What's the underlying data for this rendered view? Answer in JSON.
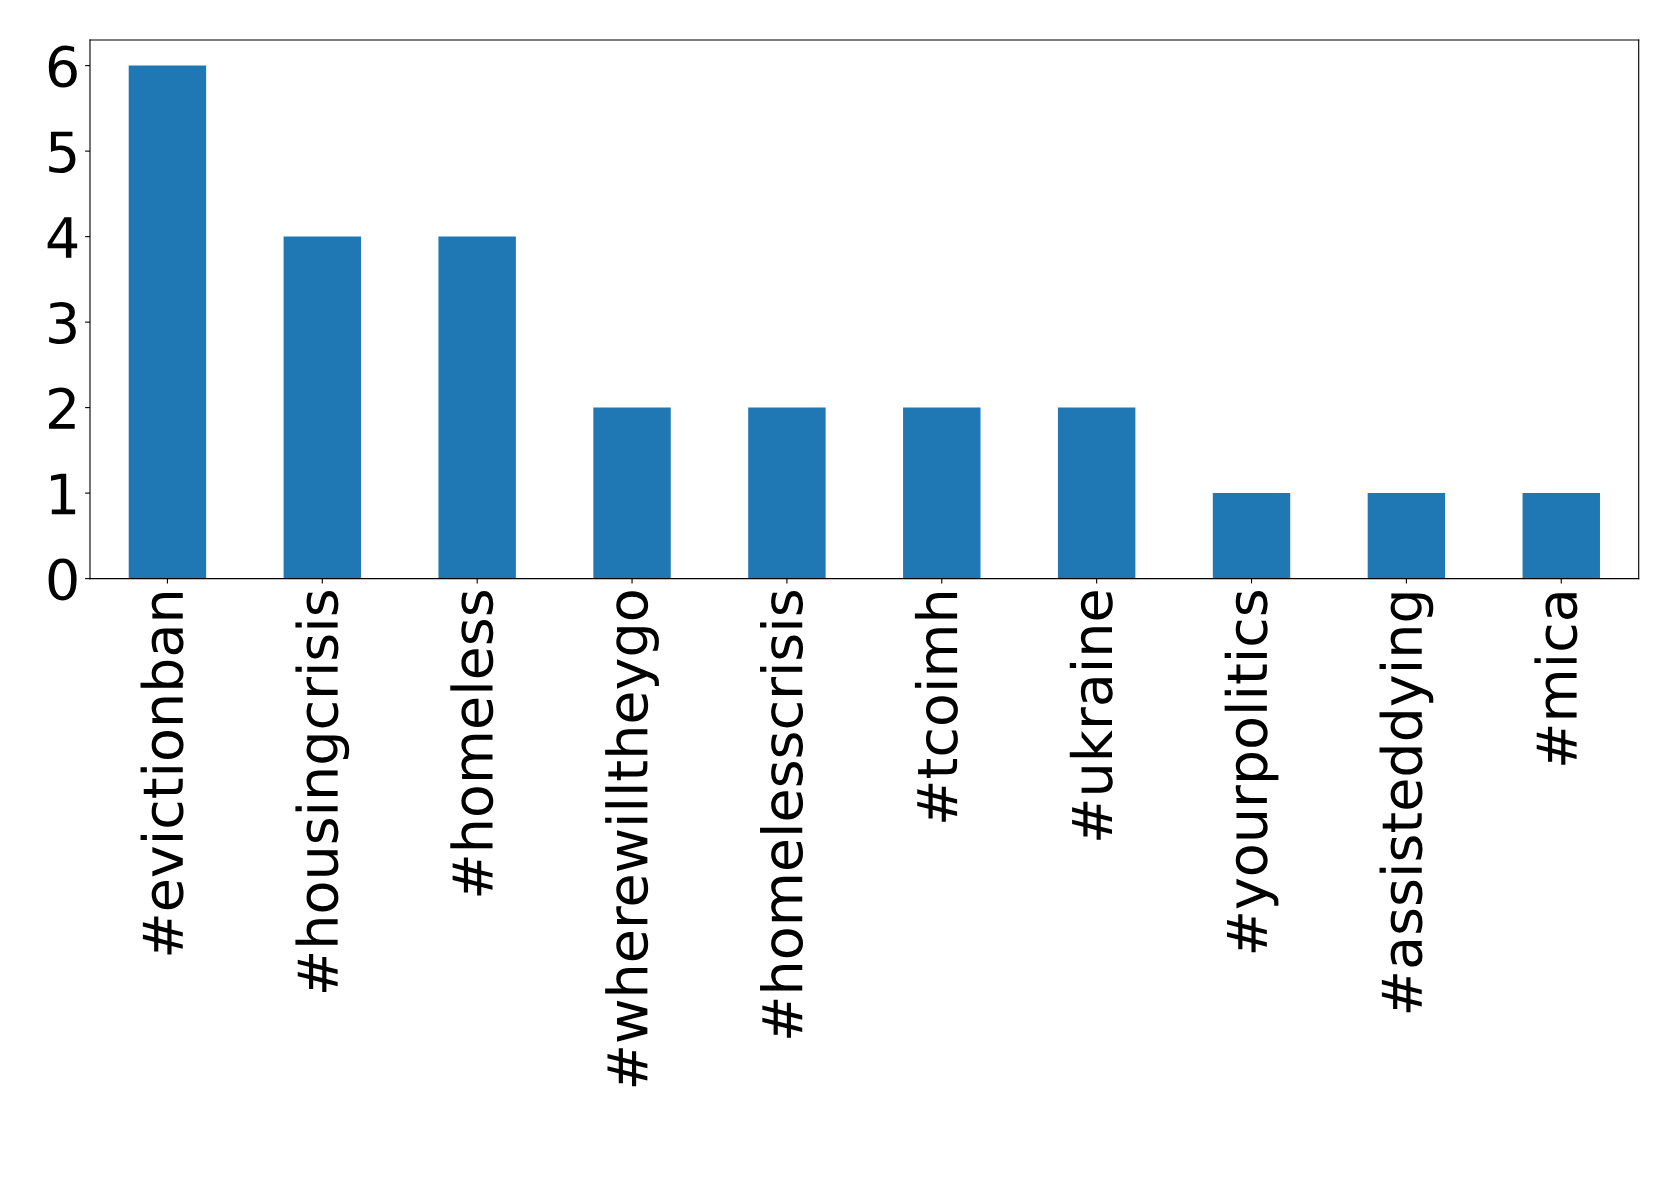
{
  "chart_data": {
    "type": "bar",
    "categories": [
      "#evictionban",
      "#housingcrisis",
      "#homeless",
      "#wherewilltheygo",
      "#homelesscrisis",
      "#tcoimh",
      "#ukraine",
      "#yourpolitics",
      "#assisteddying",
      "#mica"
    ],
    "values": [
      6,
      4,
      4,
      2,
      2,
      2,
      2,
      1,
      1,
      1
    ],
    "color": "#1f77b4",
    "ylim": [
      0,
      6.3
    ],
    "yticks": [
      0,
      1,
      2,
      3,
      4,
      5,
      6
    ],
    "grid": false,
    "legend": false
  }
}
